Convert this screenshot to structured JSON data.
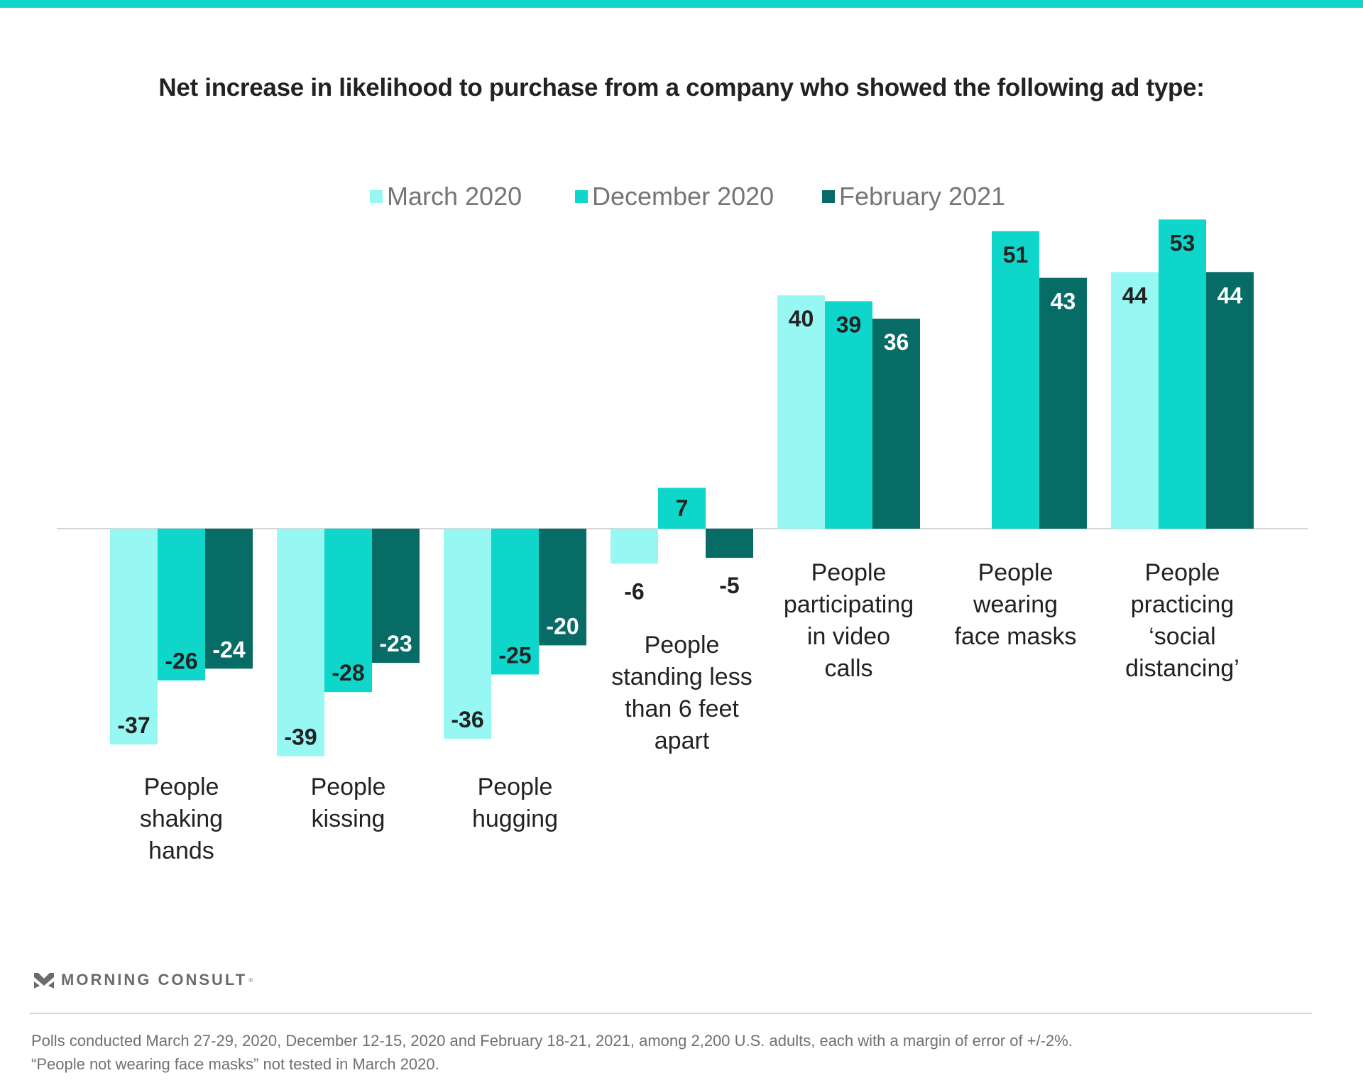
{
  "title": "Net increase in likelihood to purchase from a company who showed the following ad type:",
  "colors": {
    "top_bar": "#0fd6cb",
    "march_2020": "#97f7f3",
    "december_2020": "#0fd6cb",
    "february_2021": "#076b66",
    "zero_line": "#d5d5d5",
    "label_dark": "#222222",
    "label_light": "#ffffff"
  },
  "legend": [
    {
      "label": "March 2020",
      "color": "#97f7f3"
    },
    {
      "label": "December 2020",
      "color": "#0fd6cb"
    },
    {
      "label": "February 2021",
      "color": "#076b66"
    }
  ],
  "chart_data": {
    "type": "bar",
    "title": "Net increase in likelihood to purchase from a company who showed the following ad type:",
    "xlabel": "",
    "ylabel": "",
    "ylim": [
      -40,
      55
    ],
    "grid": false,
    "legend_position": "top-center",
    "categories": [
      [
        "People",
        "shaking",
        "hands"
      ],
      [
        "People",
        "kissing"
      ],
      [
        "People",
        "hugging"
      ],
      [
        "People",
        "standing less",
        "than 6 feet",
        "apart"
      ],
      [
        "People",
        "participating",
        "in video",
        "calls"
      ],
      [
        "People",
        "wearing",
        "face masks"
      ],
      [
        "People",
        "practicing",
        "‘social",
        "distancing’"
      ]
    ],
    "series": [
      {
        "name": "March 2020",
        "color": "#97f7f3",
        "label_color": "#222222",
        "values": [
          -37,
          -39,
          -36,
          -6,
          40,
          null,
          44
        ]
      },
      {
        "name": "December 2020",
        "color": "#0fd6cb",
        "label_color": "#222222",
        "values": [
          -26,
          -28,
          -25,
          7,
          39,
          51,
          53
        ]
      },
      {
        "name": "February 2021",
        "color": "#076b66",
        "label_color": "#ffffff",
        "values": [
          -24,
          -23,
          -20,
          -5,
          36,
          43,
          44
        ]
      }
    ]
  },
  "footer": {
    "brand": "MORNING CONSULT",
    "brand_mark": "®",
    "note_line1": "Polls conducted March 27-29, 2020, December 12-15, 2020 and February 18-21, 2021, among 2,200 U.S. adults, each with a margin of error of +/-2%.",
    "note_line2": "“People not wearing face masks” not tested in March 2020."
  }
}
